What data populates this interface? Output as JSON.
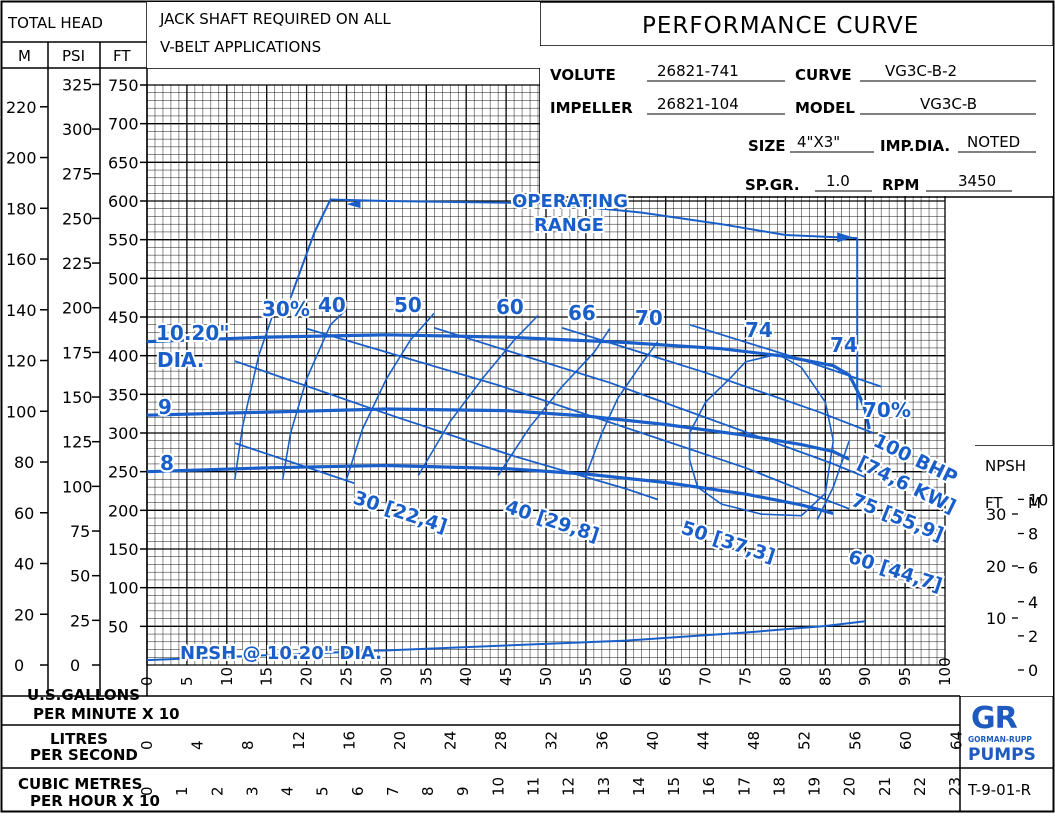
{
  "header": {
    "total_head": "TOTAL HEAD",
    "unit_m": "M",
    "unit_psi": "PSI",
    "unit_ft": "FT",
    "note_line1": "JACK SHAFT REQUIRED ON ALL",
    "note_line2": "V-BELT APPLICATIONS",
    "title": "PERFORMANCE CURVE"
  },
  "spec": {
    "volute_label": "VOLUTE",
    "volute": "26821-741",
    "curve_label": "CURVE",
    "curve": "VG3C-B-2",
    "impeller_label": "IMPELLER",
    "impeller": "26821-104",
    "model_label": "MODEL",
    "model": "VG3C-B",
    "size_label": "SIZE",
    "size": "4\"X3\"",
    "impdia_label": "IMP.DIA.",
    "impdia": "NOTED",
    "spgr_label": "SP.GR.",
    "spgr": "1.0",
    "rpm_label": "RPM",
    "rpm": "3450"
  },
  "npsh_box": {
    "title": "NPSH",
    "ft": "FT",
    "m": "M"
  },
  "bottom": {
    "gpm_label1": "U.S.GALLONS",
    "gpm_label2": "PER MINUTE X 10",
    "lps_label1": "LITRES",
    "lps_label2": "PER SECOND",
    "cmh_label1": "CUBIC METRES",
    "cmh_label2": "PER HOUR X 10",
    "code": "T-9-01-R"
  },
  "logo": {
    "mark": "GR",
    "line1": "GORMAN-RUPP",
    "line2": "PUMPS"
  },
  "colors": {
    "curve_blue": "#1a5fc9",
    "grid": "#000000",
    "logo_blue": "#1f5bbf"
  },
  "chart_data": {
    "type": "line",
    "x_unit": "U.S. gallons per minute x 10",
    "y_unit": "ft",
    "xlim": [
      0,
      100
    ],
    "ylim": [
      0,
      750
    ],
    "grid": true,
    "ticks": {
      "gpm": [
        "0",
        "5",
        "10",
        "15",
        "20",
        "25",
        "30",
        "35",
        "40",
        "45",
        "50",
        "55",
        "60",
        "65",
        "70",
        "75",
        "80",
        "85",
        "90",
        "95",
        "100"
      ],
      "ft": [
        "50",
        "100",
        "150",
        "200",
        "250",
        "300",
        "350",
        "400",
        "450",
        "500",
        "550",
        "600",
        "650",
        "700",
        "750"
      ],
      "psi": [
        "0",
        "25",
        "50",
        "75",
        "100",
        "125",
        "150",
        "175",
        "200",
        "225",
        "250",
        "275",
        "300",
        "325"
      ],
      "m": [
        "0",
        "20",
        "40",
        "60",
        "80",
        "100",
        "120",
        "140",
        "160",
        "180",
        "200",
        "220"
      ],
      "lps": [
        "0",
        "4",
        "8",
        "12",
        "16",
        "20",
        "24",
        "28",
        "32",
        "36",
        "40",
        "44",
        "48",
        "52",
        "56",
        "60",
        "64"
      ],
      "cmh": [
        "0",
        "1",
        "2",
        "3",
        "4",
        "5",
        "6",
        "7",
        "8",
        "9",
        "10",
        "11",
        "12",
        "13",
        "14",
        "15",
        "16",
        "17",
        "18",
        "19",
        "20",
        "21",
        "22",
        "23"
      ],
      "npsh_ft": [
        "10",
        "20",
        "30"
      ],
      "npsh_m": [
        "0",
        "2",
        "4",
        "6",
        "8",
        "10"
      ]
    },
    "head_curves": [
      {
        "name": "10.20\" DIA.",
        "points": [
          [
            0,
            418
          ],
          [
            15,
            424
          ],
          [
            30,
            427
          ],
          [
            45,
            424
          ],
          [
            60,
            417
          ],
          [
            72,
            409
          ],
          [
            80,
            399
          ],
          [
            86,
            387
          ],
          [
            88,
            375
          ],
          [
            89,
            355
          ],
          [
            90,
            330
          ],
          [
            90.5,
            305
          ]
        ]
      },
      {
        "name": "9",
        "points": [
          [
            0,
            323
          ],
          [
            15,
            327
          ],
          [
            30,
            331
          ],
          [
            45,
            329
          ],
          [
            55,
            322
          ],
          [
            65,
            311
          ],
          [
            75,
            297
          ],
          [
            82,
            285
          ],
          [
            86,
            276
          ],
          [
            88,
            266
          ]
        ]
      },
      {
        "name": "8",
        "points": [
          [
            0,
            250
          ],
          [
            15,
            255
          ],
          [
            30,
            258
          ],
          [
            45,
            254
          ],
          [
            55,
            247
          ],
          [
            65,
            236
          ],
          [
            75,
            221
          ],
          [
            82,
            207
          ],
          [
            86,
            196
          ]
        ]
      }
    ],
    "efficiency_curves": [
      {
        "label": "30%",
        "points": [
          [
            11,
            240
          ],
          [
            12,
            310
          ],
          [
            14,
            400
          ],
          [
            16,
            460
          ]
        ]
      },
      {
        "label": "40",
        "points": [
          [
            17,
            240
          ],
          [
            18,
            300
          ],
          [
            20,
            370
          ],
          [
            23,
            440
          ],
          [
            25,
            460
          ]
        ]
      },
      {
        "label": "50",
        "points": [
          [
            25,
            240
          ],
          [
            27,
            305
          ],
          [
            30,
            370
          ],
          [
            33,
            420
          ],
          [
            36,
            455
          ]
        ]
      },
      {
        "label": "60",
        "points": [
          [
            34,
            245
          ],
          [
            38,
            315
          ],
          [
            42,
            370
          ],
          [
            46,
            420
          ],
          [
            49,
            452
          ]
        ]
      },
      {
        "label": "66",
        "points": [
          [
            44,
            245
          ],
          [
            48,
            308
          ],
          [
            52,
            360
          ],
          [
            56,
            404
          ],
          [
            58,
            435
          ]
        ]
      },
      {
        "label": "70",
        "points": [
          [
            55,
            245
          ],
          [
            57,
            300
          ],
          [
            59,
            345
          ],
          [
            62,
            390
          ],
          [
            64,
            418
          ]
        ]
      },
      {
        "label": "74",
        "points": [
          [
            68,
            265
          ],
          [
            68,
            300
          ],
          [
            70,
            340
          ],
          [
            73,
            370
          ],
          [
            75,
            392
          ],
          [
            79,
            402
          ],
          [
            82,
            385
          ],
          [
            85,
            340
          ],
          [
            86,
            290
          ],
          [
            85,
            222
          ],
          [
            82,
            193
          ],
          [
            77,
            195
          ],
          [
            72,
            208
          ],
          [
            69,
            230
          ],
          [
            68,
            265
          ]
        ]
      },
      {
        "label": "70%",
        "points": [
          [
            84,
            188
          ],
          [
            86,
            230
          ],
          [
            88,
            290
          ]
        ]
      }
    ],
    "bhp_curves": [
      {
        "label": "30 [22,4]",
        "points": [
          [
            11,
            287
          ],
          [
            24,
            242
          ],
          [
            26,
            235
          ]
        ]
      },
      {
        "label": "40 [29,8]",
        "points": [
          [
            11,
            393
          ],
          [
            30,
            325
          ],
          [
            46,
            270
          ],
          [
            60,
            228
          ],
          [
            64,
            214
          ]
        ]
      },
      {
        "label": "50 [37,3]",
        "points": [
          [
            20,
            435
          ],
          [
            44,
            362
          ],
          [
            62,
            300
          ],
          [
            75,
            255
          ],
          [
            84,
            218
          ],
          [
            88,
            202
          ]
        ]
      },
      {
        "label": "60 [44,7]",
        "points": [
          [
            36,
            436
          ],
          [
            58,
            365
          ],
          [
            74,
            305
          ],
          [
            86,
            260
          ],
          [
            90,
            243
          ]
        ]
      },
      {
        "label": "75 [55,9]",
        "points": [
          [
            52,
            436
          ],
          [
            70,
            378
          ],
          [
            84,
            328
          ],
          [
            91,
            300
          ]
        ]
      },
      {
        "label": "100 BHP [74,6 KW]",
        "points": [
          [
            68,
            440
          ],
          [
            82,
            395
          ],
          [
            92,
            360
          ]
        ]
      }
    ],
    "operating_range": {
      "label_line1": "OPERATING",
      "label_line2": "RANGE",
      "points": [
        [
          18,
          475
        ],
        [
          21,
          560
        ],
        [
          23,
          602
        ],
        [
          30,
          600
        ],
        [
          50,
          597
        ],
        [
          62,
          585
        ],
        [
          72,
          570
        ],
        [
          80,
          556
        ],
        [
          89,
          552
        ]
      ]
    },
    "npsh_curve": {
      "label": "NPSH @ 10.20\" DIA.",
      "points": [
        [
          0,
          3
        ],
        [
          20,
          7
        ],
        [
          40,
          11
        ],
        [
          60,
          15
        ],
        [
          75,
          20
        ],
        [
          85,
          24
        ],
        [
          90,
          27
        ]
      ],
      "unit": "ft"
    }
  }
}
